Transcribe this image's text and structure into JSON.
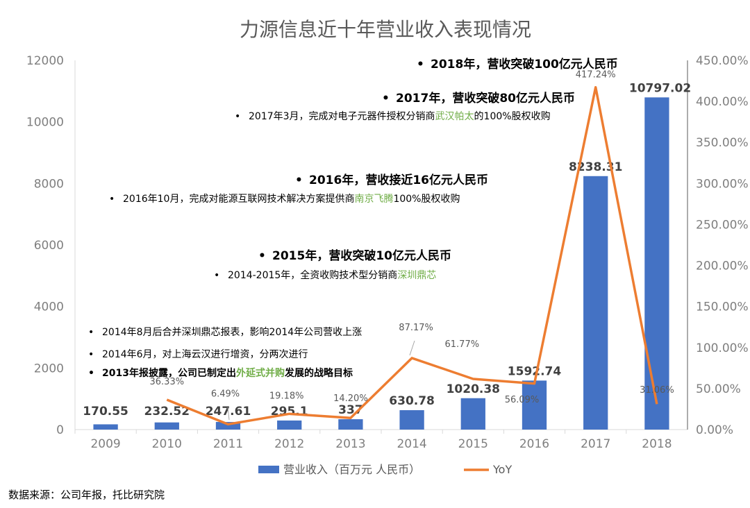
{
  "chart_data": {
    "type": "bar",
    "title": "力源信息近十年营业收入表现情况",
    "categories": [
      "2009",
      "2010",
      "2011",
      "2012",
      "2013",
      "2014",
      "2015",
      "2016",
      "2017",
      "2018"
    ],
    "series": [
      {
        "name": "营业收入（百万元 人民币）",
        "type": "bar",
        "axis": "left",
        "color": "#4472c4",
        "values": [
          170.55,
          232.52,
          247.61,
          295.1,
          337,
          630.78,
          1020.38,
          1592.74,
          8238.31,
          10797.02
        ],
        "labels": [
          "170.55",
          "232.52",
          "247.61",
          "295.1",
          "337",
          "630.78",
          "1020.38",
          "1592.74",
          "8238.31",
          "10797.02"
        ]
      },
      {
        "name": "YoY",
        "type": "line",
        "axis": "right",
        "color": "#ed7d31",
        "values": [
          null,
          36.33,
          6.49,
          19.18,
          14.2,
          87.17,
          61.77,
          56.09,
          417.24,
          31.06
        ],
        "labels": [
          "",
          "36.33%",
          "6.49%",
          "19.18%",
          "14.20%",
          "87.17%",
          "61.77%",
          "56.09%",
          "417.24%",
          "31.06%"
        ]
      }
    ],
    "ylim": [
      0,
      12000
    ],
    "y_ticks": [
      "0",
      "2000",
      "4000",
      "6000",
      "8000",
      "10000",
      "12000"
    ],
    "y2lim": [
      0,
      450
    ],
    "y2_ticks": [
      "0.00%",
      "50.00%",
      "100.00%",
      "150.00%",
      "200.00%",
      "250.00%",
      "300.00%",
      "350.00%",
      "400.00%",
      "450.00%"
    ],
    "grid": false,
    "legend_position": "bottom"
  },
  "annotations": [
    {
      "bullet": "•",
      "parts": [
        {
          "text": "2018年，营收突破100亿元人民币"
        }
      ],
      "style": "big"
    },
    {
      "bullet": "•",
      "parts": [
        {
          "text": "2017年，营收突破80亿元人民币"
        }
      ],
      "style": "big"
    },
    {
      "bullet": "•",
      "parts": [
        {
          "text": "2017年3月，完成对电子元器件授权分销商"
        },
        {
          "text": "武汉帕太",
          "color": "#70ad47"
        },
        {
          "text": "的100%股权收购"
        }
      ],
      "style": "small"
    },
    {
      "bullet": "•",
      "parts": [
        {
          "text": "2016年，营收接近16亿元人民币"
        }
      ],
      "style": "big"
    },
    {
      "bullet": "•",
      "parts": [
        {
          "text": "2016年10月，完成对能源互联网技术解决方案提供商"
        },
        {
          "text": "南京飞腾",
          "color": "#70ad47"
        },
        {
          "text": "100%股权收购"
        }
      ],
      "style": "small"
    },
    {
      "bullet": "•",
      "parts": [
        {
          "text": "2015年，营收突破10亿元人民币"
        }
      ],
      "style": "big"
    },
    {
      "bullet": "•",
      "parts": [
        {
          "text": "2014-2015年，全资收购技术型分销商"
        },
        {
          "text": "深圳鼎芯",
          "color": "#70ad47"
        }
      ],
      "style": "small"
    },
    {
      "bullet": "•",
      "parts": [
        {
          "text": "2014年8月后合并深圳鼎芯报表，影响2014年公司营收上涨"
        }
      ],
      "style": "small"
    },
    {
      "bullet": "•",
      "parts": [
        {
          "text": "2014年6月，对上海云汉进行增资，分两次进行"
        }
      ],
      "style": "small"
    },
    {
      "bullet": "•",
      "parts": [
        {
          "text": "2013年报披露，公司已制定出"
        },
        {
          "text": "外延式并购",
          "color": "#70ad47"
        },
        {
          "text": "发展的战略目标"
        }
      ],
      "style": "small-bold"
    }
  ],
  "source": "数据来源：公司年报，托比研究院"
}
